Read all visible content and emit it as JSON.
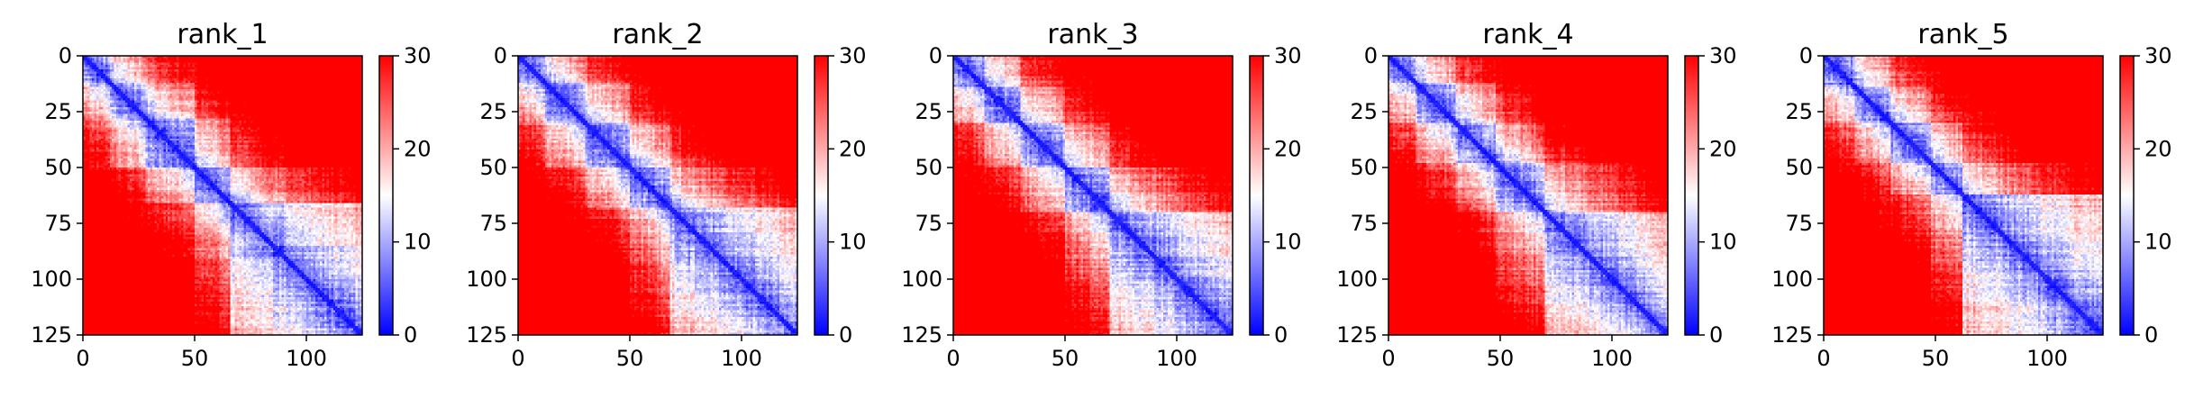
{
  "chart_data": [
    {
      "type": "heatmap",
      "title": "rank_1",
      "x_ticks": [
        "0",
        "50",
        "100"
      ],
      "y_ticks": [
        "0",
        "25",
        "50",
        "75",
        "100",
        "125"
      ],
      "colorbar_ticks": [
        "0",
        "10",
        "20",
        "30"
      ],
      "xlim": [
        0,
        125
      ],
      "ylim": [
        125,
        0
      ],
      "color_range": [
        0,
        30
      ],
      "colormap": [
        "#0000ff",
        "#ffffff",
        "#ff0000"
      ],
      "domains": [
        [
          0,
          12
        ],
        [
          12,
          28
        ],
        [
          28,
          50
        ],
        [
          50,
          66
        ],
        [
          66,
          125
        ]
      ]
    },
    {
      "type": "heatmap",
      "title": "rank_2",
      "x_ticks": [
        "0",
        "50",
        "100"
      ],
      "y_ticks": [
        "0",
        "25",
        "50",
        "75",
        "100",
        "125"
      ],
      "colorbar_ticks": [
        "0",
        "10",
        "20",
        "30"
      ],
      "xlim": [
        0,
        125
      ],
      "ylim": [
        125,
        0
      ],
      "color_range": [
        0,
        30
      ],
      "colormap": [
        "#0000ff",
        "#ffffff",
        "#ff0000"
      ],
      "domains": [
        [
          0,
          12
        ],
        [
          12,
          30
        ],
        [
          30,
          50
        ],
        [
          50,
          68
        ],
        [
          68,
          125
        ]
      ]
    },
    {
      "type": "heatmap",
      "title": "rank_3",
      "x_ticks": [
        "0",
        "50",
        "100"
      ],
      "y_ticks": [
        "0",
        "25",
        "50",
        "75",
        "100",
        "125"
      ],
      "colorbar_ticks": [
        "0",
        "10",
        "20",
        "30"
      ],
      "xlim": [
        0,
        125
      ],
      "ylim": [
        125,
        0
      ],
      "color_range": [
        0,
        30
      ],
      "colormap": [
        "#0000ff",
        "#ffffff",
        "#ff0000"
      ],
      "domains": [
        [
          0,
          14
        ],
        [
          14,
          30
        ],
        [
          30,
          50
        ],
        [
          50,
          70
        ],
        [
          70,
          125
        ]
      ]
    },
    {
      "type": "heatmap",
      "title": "rank_4",
      "x_ticks": [
        "0",
        "50",
        "100"
      ],
      "y_ticks": [
        "0",
        "25",
        "50",
        "75",
        "100",
        "125"
      ],
      "colorbar_ticks": [
        "0",
        "10",
        "20",
        "30"
      ],
      "xlim": [
        0,
        125
      ],
      "ylim": [
        125,
        0
      ],
      "color_range": [
        0,
        30
      ],
      "colormap": [
        "#0000ff",
        "#ffffff",
        "#ff0000"
      ],
      "domains": [
        [
          0,
          12
        ],
        [
          12,
          30
        ],
        [
          30,
          48
        ],
        [
          48,
          70
        ],
        [
          70,
          125
        ]
      ]
    },
    {
      "type": "heatmap",
      "title": "rank_5",
      "x_ticks": [
        "0",
        "50",
        "100"
      ],
      "y_ticks": [
        "0",
        "25",
        "50",
        "75",
        "100",
        "125"
      ],
      "colorbar_ticks": [
        "0",
        "10",
        "20",
        "30"
      ],
      "xlim": [
        0,
        125
      ],
      "ylim": [
        125,
        0
      ],
      "color_range": [
        0,
        30
      ],
      "colormap": [
        "#0000ff",
        "#ffffff",
        "#ff0000"
      ],
      "domains": [
        [
          0,
          14
        ],
        [
          14,
          30
        ],
        [
          30,
          48
        ],
        [
          48,
          62
        ],
        [
          62,
          125
        ]
      ]
    }
  ]
}
